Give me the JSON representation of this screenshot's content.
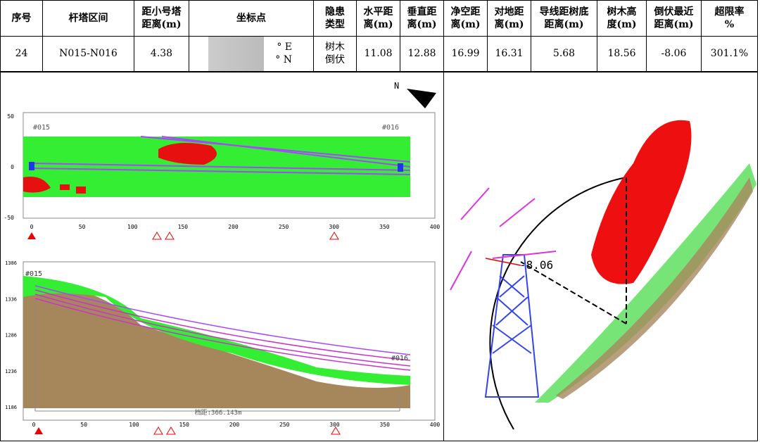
{
  "table": {
    "header": [
      "序号",
      "杆塔区间",
      "距小号塔\n距离(m)",
      "坐标点",
      "隐患\n类型",
      "水平距\n离(m)",
      "垂直距\n离(m)",
      "净空距\n离(m)",
      "对地距\n离(m)",
      "导线距树底\n距离(m)",
      "树木高\n度(m)",
      "倒伏最近\n距离(m)",
      "超限率\n%"
    ],
    "rows": [
      [
        "24",
        "N015-N016",
        "4.38",
        "° E\n° N",
        "树木\n倒伏",
        "11.08",
        "12.88",
        "16.99",
        "16.31",
        "5.68",
        "18.56",
        "-8.06",
        "301.1%"
      ]
    ]
  },
  "plan_view": {
    "yticks": [
      50,
      0,
      -50
    ],
    "xticks": [
      0,
      50,
      100,
      150,
      200,
      250,
      300,
      350,
      400
    ],
    "towers": [
      "#015",
      "#016"
    ]
  },
  "profile_view": {
    "yticks": [
      1386,
      1336,
      1286,
      1236,
      1186
    ],
    "xticks": [
      0,
      50,
      100,
      150,
      200,
      250,
      300,
      350,
      400
    ],
    "towers": [
      "#015",
      "#016"
    ],
    "span_label": "档距:366.143m"
  },
  "view_3d": {
    "distance_label": "-8.06"
  }
}
